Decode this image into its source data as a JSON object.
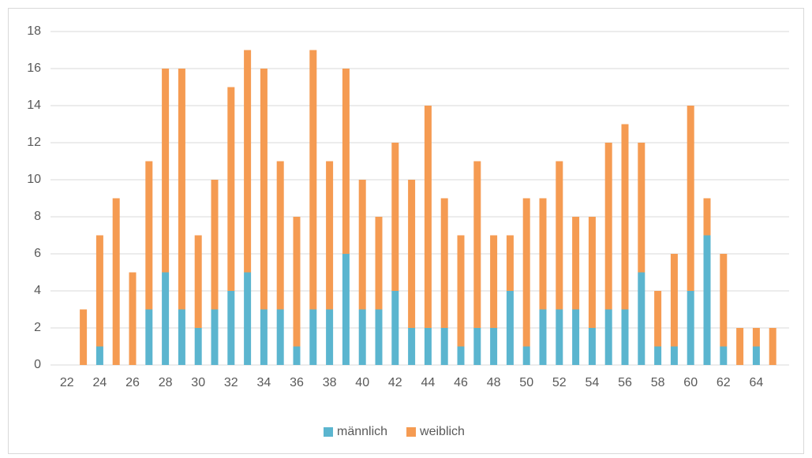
{
  "chart_data": {
    "type": "bar",
    "stacked": true,
    "x": [
      23,
      24,
      25,
      26,
      27,
      28,
      29,
      30,
      31,
      32,
      33,
      34,
      35,
      36,
      37,
      38,
      39,
      40,
      41,
      42,
      43,
      44,
      45,
      46,
      47,
      48,
      49,
      50,
      51,
      52,
      53,
      54,
      55,
      56,
      57,
      58,
      59,
      60,
      61,
      62,
      63,
      64,
      65
    ],
    "series": [
      {
        "name": "männlich",
        "color": "#5bb5cf",
        "values": [
          0,
          1,
          0,
          0,
          3,
          5,
          3,
          2,
          3,
          4,
          5,
          3,
          3,
          1,
          3,
          3,
          6,
          3,
          3,
          4,
          2,
          2,
          2,
          1,
          2,
          2,
          4,
          1,
          3,
          3,
          3,
          2,
          3,
          3,
          5,
          1,
          1,
          4,
          7,
          1,
          0,
          1,
          0
        ]
      },
      {
        "name": "weiblich",
        "color": "#f59b52",
        "values": [
          3,
          6,
          9,
          5,
          8,
          11,
          13,
          5,
          7,
          11,
          12,
          13,
          8,
          7,
          14,
          8,
          10,
          7,
          5,
          8,
          8,
          12,
          7,
          6,
          9,
          5,
          3,
          8,
          6,
          8,
          5,
          6,
          9,
          10,
          7,
          3,
          5,
          10,
          2,
          5,
          2,
          1,
          2
        ]
      }
    ],
    "xlim": [
      21,
      66
    ],
    "xticks": [
      22,
      24,
      26,
      28,
      30,
      32,
      34,
      36,
      38,
      40,
      42,
      44,
      46,
      48,
      50,
      52,
      54,
      56,
      58,
      60,
      62,
      64
    ],
    "ylim": [
      0,
      18
    ],
    "yticks": [
      0,
      2,
      4,
      6,
      8,
      10,
      12,
      14,
      16,
      18
    ],
    "grid": true,
    "legend": "bottom"
  }
}
